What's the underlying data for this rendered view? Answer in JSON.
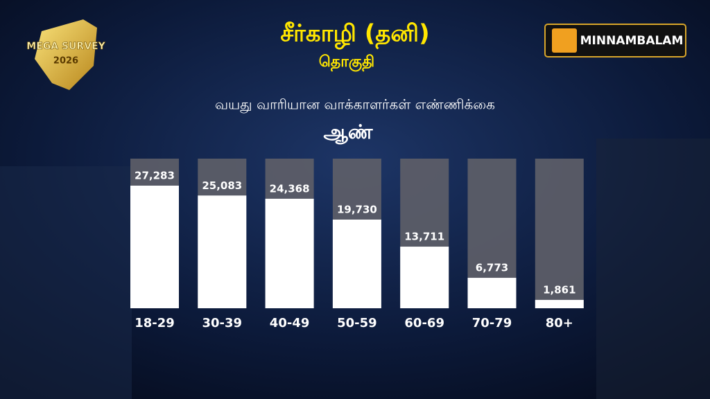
{
  "branding": {
    "survey": "MEGA SURVEY",
    "year": "2026",
    "channel": "MINNAMBALAM"
  },
  "chart_data": {
    "type": "bar",
    "title": "சீர்காழி (தனி)",
    "subtitle": "தொகுதி",
    "chart_title": "வயது வாரியான வாக்காளர்கள் எண்ணிக்கை",
    "group": "ஆண்",
    "categories": [
      "18-29",
      "30-39",
      "40-49",
      "50-59",
      "60-69",
      "70-79",
      "80+"
    ],
    "values": [
      27283,
      25083,
      24368,
      19730,
      13711,
      6773,
      1861
    ],
    "value_labels": [
      "27,283",
      "25,083",
      "24,368",
      "19,730",
      "13,711",
      "6,773",
      "1,861"
    ],
    "color": "#ffffff"
  }
}
